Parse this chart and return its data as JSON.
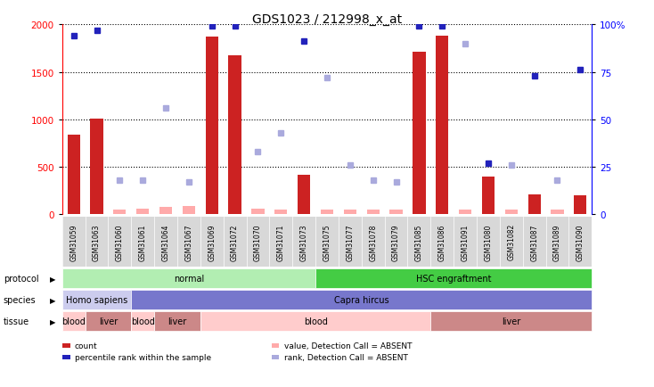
{
  "title": "GDS1023 / 212998_x_at",
  "samples": [
    "GSM31059",
    "GSM31063",
    "GSM31060",
    "GSM31061",
    "GSM31064",
    "GSM31067",
    "GSM31069",
    "GSM31072",
    "GSM31070",
    "GSM31071",
    "GSM31073",
    "GSM31075",
    "GSM31077",
    "GSM31078",
    "GSM31079",
    "GSM31085",
    "GSM31086",
    "GSM31091",
    "GSM31080",
    "GSM31082",
    "GSM31087",
    "GSM31089",
    "GSM31090"
  ],
  "count_values": [
    840,
    1010,
    55,
    60,
    80,
    90,
    1870,
    1670,
    60,
    55,
    420,
    55,
    50,
    55,
    55,
    1710,
    1880,
    55,
    400,
    55,
    210,
    55,
    205
  ],
  "count_absent": [
    false,
    false,
    true,
    true,
    true,
    true,
    false,
    false,
    true,
    true,
    false,
    true,
    true,
    true,
    true,
    false,
    false,
    true,
    false,
    true,
    false,
    true,
    false
  ],
  "percentile_values": [
    94,
    97,
    18,
    18,
    56,
    17,
    99,
    99,
    33,
    43,
    91,
    72,
    26,
    18,
    17,
    99,
    99,
    90,
    27,
    26,
    73,
    18,
    76
  ],
  "percentile_absent": [
    false,
    false,
    true,
    true,
    true,
    true,
    false,
    false,
    true,
    true,
    false,
    true,
    true,
    true,
    true,
    false,
    false,
    true,
    false,
    true,
    false,
    true,
    false
  ],
  "ylim_left": [
    0,
    2000
  ],
  "ylim_right": [
    0,
    100
  ],
  "yticks_left": [
    0,
    500,
    1000,
    1500,
    2000
  ],
  "yticks_right": [
    0,
    25,
    50,
    75,
    100
  ],
  "protocol_groups": [
    {
      "label": "normal",
      "start": 0,
      "end": 11,
      "color": "#b2eeb2"
    },
    {
      "label": "HSC engraftment",
      "start": 11,
      "end": 23,
      "color": "#44cc44"
    }
  ],
  "species_groups": [
    {
      "label": "Homo sapiens",
      "start": 0,
      "end": 3,
      "color": "#ccccee"
    },
    {
      "label": "Capra hircus",
      "start": 3,
      "end": 23,
      "color": "#7777cc"
    }
  ],
  "tissue_groups": [
    {
      "label": "blood",
      "start": 0,
      "end": 1,
      "color": "#ffcccc"
    },
    {
      "label": "liver",
      "start": 1,
      "end": 3,
      "color": "#cc8888"
    },
    {
      "label": "blood",
      "start": 3,
      "end": 4,
      "color": "#ffcccc"
    },
    {
      "label": "liver",
      "start": 4,
      "end": 6,
      "color": "#cc8888"
    },
    {
      "label": "blood",
      "start": 6,
      "end": 16,
      "color": "#ffcccc"
    },
    {
      "label": "liver",
      "start": 16,
      "end": 23,
      "color": "#cc8888"
    }
  ],
  "bar_color_present": "#cc2222",
  "bar_color_absent": "#ffaaaa",
  "dot_color_present": "#2222bb",
  "dot_color_absent": "#aaaadd",
  "legend_items": [
    {
      "label": "count",
      "color": "#cc2222"
    },
    {
      "label": "percentile rank within the sample",
      "color": "#2222bb"
    },
    {
      "label": "value, Detection Call = ABSENT",
      "color": "#ffaaaa"
    },
    {
      "label": "rank, Detection Call = ABSENT",
      "color": "#aaaadd"
    }
  ]
}
